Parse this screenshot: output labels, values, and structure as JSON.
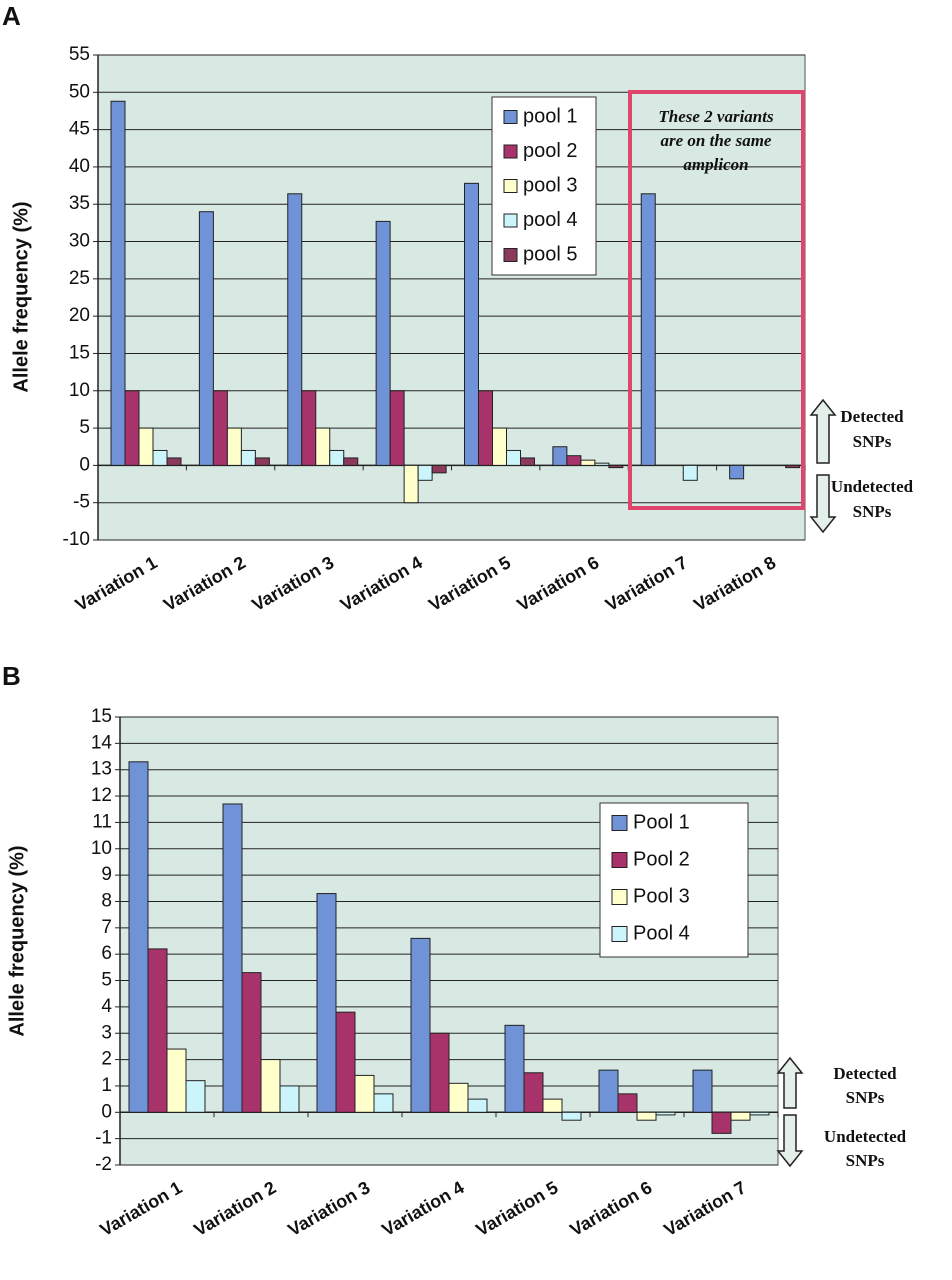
{
  "chart_data": [
    {
      "type": "bar",
      "panel_label": "A",
      "y_label": "Allele frequency (%)",
      "categories": [
        "Variation 1",
        "Variation 2",
        "Variation 3",
        "Variation 4",
        "Variation 5",
        "Variation 6",
        "Variation 7",
        "Variation 8"
      ],
      "series": [
        {
          "name": "pool 1",
          "color": "#7092d6",
          "values": [
            48.8,
            34,
            36.4,
            32.7,
            37.8,
            2.5,
            36.4,
            -1.8
          ]
        },
        {
          "name": "pool 2",
          "color": "#a8336a",
          "values": [
            10,
            10,
            10,
            10,
            10,
            1.3,
            0,
            0
          ]
        },
        {
          "name": "pool 3",
          "color": "#ffffcc",
          "values": [
            5,
            5,
            5,
            -5,
            5,
            0.7,
            0,
            0
          ]
        },
        {
          "name": "pool 4",
          "color": "#ccf4fb",
          "values": [
            2,
            2,
            2,
            -2,
            2,
            0.3,
            -2,
            0
          ]
        },
        {
          "name": "pool 5",
          "color": "#8c3a5c",
          "values": [
            1,
            1,
            1,
            -1,
            1,
            -0.3,
            0,
            -0.3
          ]
        }
      ],
      "ylim": [
        -10,
        55
      ],
      "yticks": [
        -10,
        -5,
        0,
        5,
        10,
        15,
        20,
        25,
        30,
        35,
        40,
        45,
        50,
        55
      ],
      "grid": true,
      "annotation": [
        "These 2 variants",
        "are on the same",
        "amplicon"
      ],
      "detected": [
        "Detected",
        "SNPs"
      ],
      "undetected": [
        "Undetected",
        "SNPs"
      ]
    },
    {
      "type": "bar",
      "panel_label": "B",
      "y_label": "Allele frequency (%)",
      "categories": [
        "Variation 1",
        "Variation 2",
        "Variation 3",
        "Variation 4",
        "Variation 5",
        "Variation 6",
        "Variation 7"
      ],
      "series": [
        {
          "name": "Pool 1",
          "color": "#7092d6",
          "values": [
            13.3,
            11.7,
            8.3,
            6.6,
            3.3,
            1.6,
            1.6
          ]
        },
        {
          "name": "Pool 2",
          "color": "#a8336a",
          "values": [
            6.2,
            5.3,
            3.8,
            3.0,
            1.5,
            0.7,
            -0.8
          ]
        },
        {
          "name": "Pool 3",
          "color": "#ffffcc",
          "values": [
            2.4,
            2.0,
            1.4,
            1.1,
            0.5,
            -0.3,
            -0.3
          ]
        },
        {
          "name": "Pool 4",
          "color": "#ccf4fb",
          "values": [
            1.2,
            1.0,
            0.7,
            0.5,
            -0.3,
            -0.1,
            -0.1
          ]
        }
      ],
      "ylim": [
        -2,
        15
      ],
      "yticks": [
        -2,
        -1,
        0,
        1,
        2,
        3,
        4,
        5,
        6,
        7,
        8,
        9,
        10,
        11,
        12,
        13,
        14,
        15
      ],
      "grid": true,
      "detected": [
        "Detected",
        "SNPs"
      ],
      "undetected": [
        "Undetected",
        "SNPs"
      ]
    }
  ]
}
